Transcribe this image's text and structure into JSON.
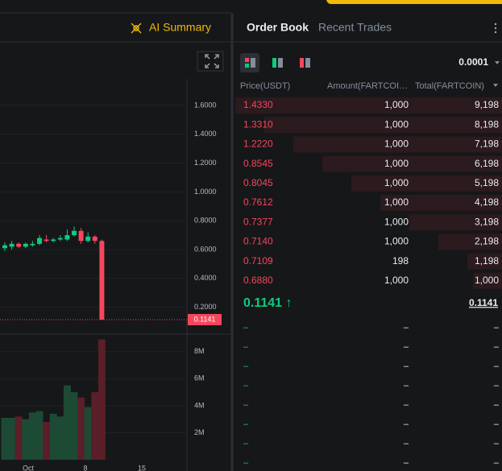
{
  "header": {
    "ai_summary": "AI Summary",
    "tabs": [
      "Order Book",
      "Recent Trades"
    ]
  },
  "price_chart": {
    "type": "candlestick",
    "open": [
      0.61,
      0.62,
      0.64,
      0.62,
      0.63,
      0.64,
      0.67,
      0.66,
      0.67,
      0.67,
      0.7,
      0.73,
      0.66,
      0.69,
      0.66
    ],
    "high": [
      0.65,
      0.66,
      0.65,
      0.65,
      0.66,
      0.7,
      0.7,
      0.68,
      0.7,
      0.74,
      0.76,
      0.75,
      0.72,
      0.7,
      0.67
    ],
    "low": [
      0.59,
      0.6,
      0.61,
      0.61,
      0.62,
      0.63,
      0.65,
      0.65,
      0.66,
      0.66,
      0.69,
      0.64,
      0.65,
      0.64,
      0.11
    ],
    "close": [
      0.63,
      0.64,
      0.62,
      0.64,
      0.64,
      0.68,
      0.66,
      0.67,
      0.68,
      0.7,
      0.73,
      0.66,
      0.69,
      0.66,
      0.1141
    ],
    "volume": [
      3.1,
      3.1,
      3.2,
      3.0,
      3.5,
      3.6,
      2.8,
      3.4,
      3.2,
      5.5,
      5.0,
      4.6,
      3.9,
      5.0,
      8.9
    ],
    "up_color": "#0ecb81",
    "down_color": "#f6465d",
    "ylim": [
      0,
      1.6
    ],
    "yticks": [
      {
        "value": 0.2,
        "label": "0.2000"
      },
      {
        "value": 0.4,
        "label": "0.4000"
      },
      {
        "value": 0.6,
        "label": "0.6000"
      },
      {
        "value": 0.8,
        "label": "0.8000"
      },
      {
        "value": 1.0,
        "label": "1.0000"
      },
      {
        "value": 1.2,
        "label": "1.2000"
      },
      {
        "value": 1.4,
        "label": "1.4000"
      },
      {
        "value": 1.6,
        "label": "1.6000"
      }
    ],
    "last_price": {
      "value": 0.1141,
      "label": "0.1141"
    },
    "vol_ylim": [
      0,
      9
    ],
    "vol_yticks": [
      {
        "value": 2,
        "label": "2M"
      },
      {
        "value": 4,
        "label": "4M"
      },
      {
        "value": 6,
        "label": "6M"
      },
      {
        "value": 8,
        "label": "8M"
      }
    ],
    "xlabels": [
      "Oct",
      "8",
      "15"
    ]
  },
  "order_book": {
    "precision": "0.0001",
    "columns": [
      "Price(USDT)",
      "Amount(FARTCOI…",
      "Total(FARTCOIN)"
    ],
    "asks": [
      [
        "1.4330",
        "1,000",
        "9,198"
      ],
      [
        "1.3310",
        "1,000",
        "8,198"
      ],
      [
        "1.2220",
        "1,000",
        "7,198"
      ],
      [
        "0.8545",
        "1,000",
        "6,198"
      ],
      [
        "0.8045",
        "1,000",
        "5,198"
      ],
      [
        "0.7612",
        "1,000",
        "4,198"
      ],
      [
        "0.7377",
        "1,000",
        "3,198"
      ],
      [
        "0.7140",
        "1,000",
        "2,198"
      ],
      [
        "0.7109",
        "198",
        "1,198"
      ],
      [
        "0.6880",
        "1,000",
        "1,000"
      ]
    ],
    "ask_totals": [
      9198,
      8198,
      7198,
      6198,
      5198,
      4198,
      3198,
      2198,
      1198,
      1000
    ],
    "mid_price": "0.1141 ↑",
    "mark_price": "0.1141",
    "bids": [
      [
        "–",
        "–",
        "–"
      ],
      [
        "–",
        "–",
        "–"
      ],
      [
        "–",
        "–",
        "–"
      ],
      [
        "–",
        "–",
        "–"
      ],
      [
        "–",
        "–",
        "–"
      ],
      [
        "–",
        "–",
        "–"
      ],
      [
        "–",
        "–",
        "–"
      ],
      [
        "–",
        "–",
        "–"
      ]
    ]
  }
}
